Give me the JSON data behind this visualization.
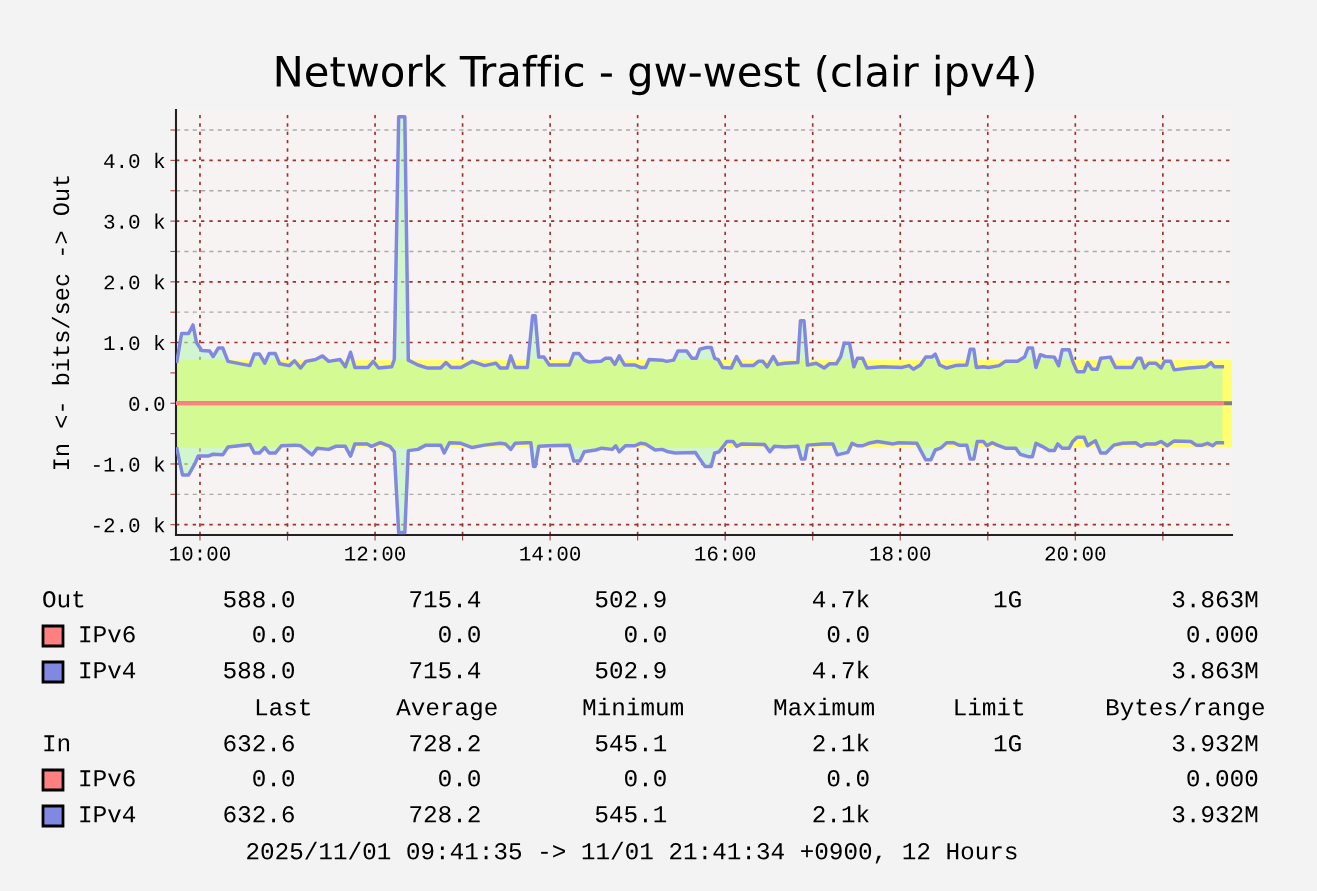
{
  "chart_data": {
    "type": "area",
    "title": "Network Traffic - gw-west (clair ipv4)",
    "ylabel": "In <- bits/sec -> Out",
    "xlim": [
      9.726,
      21.79
    ],
    "ylim": [
      -2170,
      4830
    ],
    "xticks": [
      {
        "value": 10,
        "label": "10:00"
      },
      {
        "value": 11,
        "label": null
      },
      {
        "value": 12,
        "label": "12:00"
      },
      {
        "value": 13,
        "label": null
      },
      {
        "value": 14,
        "label": "14:00"
      },
      {
        "value": 15,
        "label": null
      },
      {
        "value": 16,
        "label": "16:00"
      },
      {
        "value": 17,
        "label": null
      },
      {
        "value": 18,
        "label": "18:00"
      },
      {
        "value": 19,
        "label": null
      },
      {
        "value": 20,
        "label": "20:00"
      },
      {
        "value": 21,
        "label": null
      }
    ],
    "yticks": [
      {
        "value": -2000,
        "label": "-2.0 k"
      },
      {
        "value": -1500,
        "label": null
      },
      {
        "value": -1000,
        "label": "-1.0 k"
      },
      {
        "value": -500,
        "label": null
      },
      {
        "value": 0,
        "label": "0.0"
      },
      {
        "value": 500,
        "label": null
      },
      {
        "value": 1000,
        "label": "1.0 k"
      },
      {
        "value": 1500,
        "label": null
      },
      {
        "value": 2000,
        "label": "2.0 k"
      },
      {
        "value": 2500,
        "label": null
      },
      {
        "value": 3000,
        "label": "3.0 k"
      },
      {
        "value": 3500,
        "label": null
      },
      {
        "value": 4000,
        "label": "4.0 k"
      },
      {
        "value": 4500,
        "label": null
      }
    ],
    "grid": true,
    "legend": "bottom",
    "bands": [
      {
        "axis": "y",
        "from": 0,
        "to": 715.4,
        "color": "#ffff70"
      },
      {
        "axis": "y",
        "from": -728.2,
        "to": 0,
        "color": "#ffff70"
      }
    ],
    "ref_lines": [
      {
        "axis": "y",
        "value": 0,
        "color": "#808080"
      }
    ],
    "series": [
      {
        "name": "IPv6",
        "type": "line",
        "color": "#ff8080",
        "x": [
          9.736,
          21.68
        ],
        "values": [
          0,
          0
        ]
      },
      {
        "color": "#b0f5b0",
        "x": [
          9.736,
          9.79,
          9.87,
          9.92,
          9.96,
          10.02,
          10.11,
          10.15,
          10.21,
          10.26,
          10.32,
          10.57,
          10.62,
          10.68,
          10.74,
          10.79,
          10.86,
          10.91,
          11.02,
          11.08,
          11.15,
          11.21,
          11.32,
          11.4,
          11.47,
          11.6,
          11.66,
          11.72,
          11.77,
          11.92,
          11.98,
          12.04,
          12.19,
          12.22,
          12.27,
          12.34,
          12.38,
          12.49,
          12.6,
          12.75,
          12.81,
          12.87,
          12.98,
          13.11,
          13.25,
          13.38,
          13.43,
          13.51,
          13.55,
          13.6,
          13.74,
          13.8,
          13.83,
          13.87,
          13.93,
          13.99,
          14.22,
          14.27,
          14.33,
          14.39,
          14.44,
          14.58,
          14.63,
          14.69,
          14.74,
          14.79,
          14.85,
          14.97,
          15.03,
          15.09,
          15.13,
          15.28,
          15.33,
          15.41,
          15.46,
          15.56,
          15.62,
          15.67,
          15.71,
          15.79,
          15.84,
          15.88,
          15.92,
          15.97,
          16.07,
          16.13,
          16.19,
          16.32,
          16.38,
          16.43,
          16.48,
          16.55,
          16.6,
          16.68,
          16.83,
          16.86,
          16.9,
          16.94,
          17.04,
          17.13,
          17.19,
          17.27,
          17.32,
          17.36,
          17.42,
          17.47,
          17.51,
          17.57,
          17.62,
          17.79,
          18.02,
          18.1,
          18.15,
          18.23,
          18.29,
          18.36,
          18.4,
          18.45,
          18.53,
          18.63,
          18.76,
          18.8,
          18.84,
          18.87,
          18.95,
          19.01,
          19.13,
          19.2,
          19.34,
          19.42,
          19.46,
          19.51,
          19.55,
          19.6,
          19.66,
          19.76,
          19.81,
          19.85,
          19.93,
          19.97,
          20.02,
          20.1,
          20.14,
          20.19,
          20.25,
          20.29,
          20.4,
          20.46,
          20.65,
          20.71,
          20.75,
          20.79,
          20.84,
          20.92,
          20.98,
          21.02,
          21.09,
          21.13,
          21.3,
          21.49,
          21.55,
          21.59,
          21.68
        ],
        "values": [
          690,
          1150,
          1150,
          1290,
          1000,
          870,
          860,
          770,
          910,
          910,
          690,
          620,
          810,
          810,
          660,
          820,
          820,
          650,
          620,
          700,
          580,
          690,
          720,
          780,
          690,
          720,
          600,
          840,
          590,
          590,
          690,
          580,
          600,
          720,
          4720,
          4720,
          710,
          630,
          580,
          580,
          670,
          590,
          590,
          690,
          620,
          660,
          580,
          580,
          780,
          590,
          590,
          1440,
          1440,
          760,
          760,
          630,
          630,
          820,
          820,
          710,
          680,
          690,
          740,
          740,
          640,
          780,
          630,
          630,
          590,
          590,
          720,
          710,
          690,
          710,
          860,
          860,
          740,
          740,
          890,
          920,
          920,
          740,
          720,
          590,
          580,
          770,
          620,
          620,
          690,
          690,
          600,
          770,
          640,
          660,
          670,
          1360,
          1360,
          630,
          660,
          580,
          650,
          650,
          770,
          990,
          990,
          600,
          740,
          740,
          580,
          600,
          590,
          620,
          560,
          630,
          760,
          760,
          810,
          630,
          580,
          620,
          630,
          890,
          890,
          590,
          600,
          590,
          620,
          690,
          690,
          760,
          910,
          910,
          590,
          800,
          770,
          760,
          620,
          880,
          880,
          690,
          520,
          520,
          670,
          560,
          560,
          740,
          760,
          590,
          590,
          740,
          740,
          580,
          660,
          660,
          580,
          690,
          690,
          550,
          580,
          600,
          670,
          600,
          600
        ]
      },
      {
        "name": "IPv4",
        "type": "line",
        "color": "#8088e0",
        "x": [
          9.736,
          9.79,
          9.87,
          9.92,
          9.96,
          10.02,
          10.11,
          10.15,
          10.21,
          10.26,
          10.32,
          10.57,
          10.62,
          10.68,
          10.74,
          10.79,
          10.86,
          10.91,
          11.02,
          11.08,
          11.15,
          11.21,
          11.32,
          11.4,
          11.47,
          11.6,
          11.66,
          11.72,
          11.77,
          11.92,
          11.98,
          12.04,
          12.19,
          12.22,
          12.27,
          12.34,
          12.38,
          12.49,
          12.6,
          12.75,
          12.81,
          12.87,
          12.98,
          13.11,
          13.25,
          13.38,
          13.43,
          13.51,
          13.55,
          13.6,
          13.74,
          13.8,
          13.83,
          13.87,
          13.93,
          13.99,
          14.22,
          14.27,
          14.33,
          14.39,
          14.44,
          14.58,
          14.63,
          14.69,
          14.74,
          14.79,
          14.85,
          14.97,
          15.03,
          15.09,
          15.13,
          15.28,
          15.33,
          15.41,
          15.46,
          15.56,
          15.62,
          15.67,
          15.71,
          15.79,
          15.84,
          15.88,
          15.92,
          15.97,
          16.07,
          16.13,
          16.19,
          16.32,
          16.38,
          16.43,
          16.48,
          16.55,
          16.6,
          16.68,
          16.83,
          16.86,
          16.9,
          16.94,
          17.04,
          17.13,
          17.19,
          17.27,
          17.32,
          17.36,
          17.42,
          17.47,
          17.51,
          17.57,
          17.62,
          17.79,
          18.02,
          18.1,
          18.15,
          18.23,
          18.29,
          18.36,
          18.4,
          18.45,
          18.53,
          18.63,
          18.76,
          18.8,
          18.84,
          18.87,
          18.95,
          19.01,
          19.13,
          19.2,
          19.34,
          19.42,
          19.46,
          19.51,
          19.55,
          19.6,
          19.66,
          19.76,
          19.81,
          19.85,
          19.93,
          19.97,
          20.02,
          20.1,
          20.14,
          20.19,
          20.25,
          20.29,
          20.4,
          20.46,
          20.65,
          20.71,
          20.75,
          20.79,
          20.84,
          20.92,
          20.98,
          21.02,
          21.09,
          21.13,
          21.3,
          21.49,
          21.55,
          21.59,
          21.68
        ],
        "values": [
          690,
          1150,
          1150,
          1290,
          1000,
          870,
          860,
          770,
          910,
          910,
          690,
          620,
          810,
          810,
          660,
          820,
          820,
          650,
          620,
          700,
          580,
          690,
          720,
          780,
          690,
          720,
          600,
          840,
          590,
          590,
          690,
          580,
          600,
          720,
          4720,
          4720,
          710,
          630,
          580,
          580,
          670,
          590,
          590,
          690,
          620,
          660,
          580,
          580,
          780,
          590,
          590,
          1440,
          1440,
          760,
          760,
          630,
          630,
          820,
          820,
          710,
          680,
          690,
          740,
          740,
          640,
          780,
          630,
          630,
          590,
          590,
          720,
          710,
          690,
          710,
          860,
          860,
          740,
          740,
          890,
          920,
          920,
          740,
          720,
          590,
          580,
          770,
          620,
          620,
          690,
          690,
          600,
          770,
          640,
          660,
          670,
          1360,
          1360,
          630,
          660,
          580,
          650,
          650,
          770,
          990,
          990,
          600,
          740,
          740,
          580,
          600,
          590,
          620,
          560,
          630,
          760,
          760,
          810,
          630,
          580,
          620,
          630,
          890,
          890,
          590,
          600,
          590,
          620,
          690,
          690,
          760,
          910,
          910,
          590,
          800,
          770,
          760,
          620,
          880,
          880,
          690,
          520,
          520,
          670,
          560,
          560,
          740,
          760,
          590,
          590,
          740,
          740,
          580,
          660,
          660,
          580,
          690,
          690,
          550,
          580,
          600,
          670,
          600,
          600
        ]
      },
      {
        "name": "IPv6",
        "type": "line",
        "color": "#ff8080",
        "x": [
          9.736,
          21.68
        ],
        "values": [
          0,
          0
        ]
      },
      {
        "color": "#b0f5b0",
        "x": [
          9.736,
          9.8,
          9.87,
          9.94,
          9.98,
          10.09,
          10.15,
          10.26,
          10.32,
          10.57,
          10.62,
          10.68,
          10.74,
          10.79,
          10.86,
          10.93,
          11.09,
          11.15,
          11.21,
          11.28,
          11.34,
          11.47,
          11.55,
          11.66,
          11.72,
          11.77,
          11.91,
          11.96,
          12.06,
          12.17,
          12.22,
          12.27,
          12.34,
          12.38,
          12.49,
          12.58,
          12.75,
          12.79,
          12.85,
          12.98,
          13.11,
          13.25,
          13.43,
          13.49,
          13.55,
          13.6,
          13.74,
          13.78,
          13.81,
          13.83,
          13.87,
          13.99,
          14.22,
          14.27,
          14.34,
          14.39,
          14.52,
          14.59,
          14.71,
          14.75,
          14.79,
          14.86,
          14.97,
          15.03,
          15.09,
          15.2,
          15.28,
          15.35,
          15.43,
          15.66,
          15.71,
          15.77,
          15.84,
          15.88,
          15.93,
          16.02,
          16.09,
          16.13,
          16.19,
          16.45,
          16.51,
          16.56,
          16.68,
          16.83,
          16.87,
          16.91,
          16.94,
          17.12,
          17.23,
          17.28,
          17.4,
          17.45,
          17.51,
          17.57,
          17.64,
          17.74,
          17.92,
          17.98,
          18.19,
          18.29,
          18.35,
          18.4,
          18.46,
          18.53,
          18.61,
          18.67,
          18.76,
          18.8,
          18.84,
          18.88,
          18.95,
          18.99,
          19.05,
          19.11,
          19.2,
          19.32,
          19.37,
          19.46,
          19.51,
          19.55,
          19.62,
          19.7,
          19.76,
          19.8,
          19.85,
          19.93,
          19.97,
          20.02,
          20.1,
          20.14,
          20.19,
          20.23,
          20.29,
          20.35,
          20.44,
          20.54,
          20.69,
          20.75,
          20.81,
          20.92,
          20.98,
          21.05,
          21.13,
          21.32,
          21.38,
          21.45,
          21.51,
          21.57,
          21.61,
          21.68
        ],
        "values": [
          -750,
          -1180,
          -1180,
          -1000,
          -870,
          -870,
          -840,
          -850,
          -720,
          -680,
          -820,
          -820,
          -730,
          -820,
          -820,
          -700,
          -690,
          -700,
          -770,
          -850,
          -740,
          -760,
          -710,
          -710,
          -870,
          -670,
          -670,
          -710,
          -650,
          -710,
          -800,
          -2130,
          -2130,
          -780,
          -760,
          -690,
          -690,
          -820,
          -650,
          -660,
          -730,
          -690,
          -660,
          -670,
          -760,
          -660,
          -650,
          -650,
          -1040,
          -1040,
          -710,
          -700,
          -690,
          -950,
          -950,
          -800,
          -770,
          -740,
          -760,
          -700,
          -800,
          -700,
          -700,
          -660,
          -670,
          -770,
          -760,
          -800,
          -820,
          -810,
          -920,
          -1040,
          -1040,
          -820,
          -800,
          -630,
          -630,
          -710,
          -670,
          -680,
          -800,
          -710,
          -720,
          -710,
          -920,
          -920,
          -690,
          -670,
          -670,
          -850,
          -810,
          -660,
          -700,
          -700,
          -660,
          -630,
          -670,
          -650,
          -660,
          -930,
          -930,
          -770,
          -740,
          -650,
          -650,
          -690,
          -690,
          -920,
          -920,
          -630,
          -630,
          -700,
          -650,
          -690,
          -740,
          -740,
          -840,
          -880,
          -880,
          -660,
          -710,
          -780,
          -780,
          -670,
          -740,
          -740,
          -630,
          -560,
          -560,
          -700,
          -650,
          -620,
          -820,
          -820,
          -690,
          -660,
          -650,
          -710,
          -670,
          -670,
          -630,
          -700,
          -620,
          -630,
          -690,
          -690,
          -660,
          -700,
          -650,
          -650
        ]
      },
      {
        "name": "IPv4",
        "type": "line",
        "color": "#8088e0",
        "x": [
          9.736,
          9.8,
          9.87,
          9.94,
          9.98,
          10.09,
          10.15,
          10.26,
          10.32,
          10.57,
          10.62,
          10.68,
          10.74,
          10.79,
          10.86,
          10.93,
          11.09,
          11.15,
          11.21,
          11.28,
          11.34,
          11.47,
          11.55,
          11.66,
          11.72,
          11.77,
          11.91,
          11.96,
          12.06,
          12.17,
          12.22,
          12.27,
          12.34,
          12.38,
          12.49,
          12.58,
          12.75,
          12.79,
          12.85,
          12.98,
          13.11,
          13.25,
          13.43,
          13.49,
          13.55,
          13.6,
          13.74,
          13.78,
          13.81,
          13.83,
          13.87,
          13.99,
          14.22,
          14.27,
          14.34,
          14.39,
          14.52,
          14.59,
          14.71,
          14.75,
          14.79,
          14.86,
          14.97,
          15.03,
          15.09,
          15.2,
          15.28,
          15.35,
          15.43,
          15.66,
          15.71,
          15.77,
          15.84,
          15.88,
          15.93,
          16.02,
          16.09,
          16.13,
          16.19,
          16.45,
          16.51,
          16.56,
          16.68,
          16.83,
          16.87,
          16.91,
          16.94,
          17.12,
          17.23,
          17.28,
          17.4,
          17.45,
          17.51,
          17.57,
          17.64,
          17.74,
          17.92,
          17.98,
          18.19,
          18.29,
          18.35,
          18.4,
          18.46,
          18.53,
          18.61,
          18.67,
          18.76,
          18.8,
          18.84,
          18.88,
          18.95,
          18.99,
          19.05,
          19.11,
          19.2,
          19.32,
          19.37,
          19.46,
          19.51,
          19.55,
          19.62,
          19.7,
          19.76,
          19.8,
          19.85,
          19.93,
          19.97,
          20.02,
          20.1,
          20.14,
          20.19,
          20.23,
          20.29,
          20.35,
          20.44,
          20.54,
          20.69,
          20.75,
          20.81,
          20.92,
          20.98,
          21.05,
          21.13,
          21.32,
          21.38,
          21.45,
          21.51,
          21.57,
          21.61,
          21.68
        ],
        "values": [
          -750,
          -1180,
          -1180,
          -1000,
          -870,
          -870,
          -840,
          -850,
          -720,
          -680,
          -820,
          -820,
          -730,
          -820,
          -820,
          -700,
          -690,
          -700,
          -770,
          -850,
          -740,
          -760,
          -710,
          -710,
          -870,
          -670,
          -670,
          -710,
          -650,
          -710,
          -800,
          -2130,
          -2130,
          -780,
          -760,
          -690,
          -690,
          -820,
          -650,
          -660,
          -730,
          -690,
          -660,
          -670,
          -760,
          -660,
          -650,
          -650,
          -1040,
          -1040,
          -710,
          -700,
          -690,
          -950,
          -950,
          -800,
          -770,
          -740,
          -760,
          -700,
          -800,
          -700,
          -700,
          -660,
          -670,
          -770,
          -760,
          -800,
          -820,
          -810,
          -920,
          -1040,
          -1040,
          -820,
          -800,
          -630,
          -630,
          -710,
          -670,
          -680,
          -800,
          -710,
          -720,
          -710,
          -920,
          -920,
          -690,
          -670,
          -670,
          -850,
          -810,
          -660,
          -700,
          -700,
          -660,
          -630,
          -670,
          -650,
          -660,
          -930,
          -930,
          -770,
          -740,
          -650,
          -650,
          -690,
          -690,
          -920,
          -920,
          -630,
          -630,
          -700,
          -650,
          -690,
          -740,
          -740,
          -840,
          -880,
          -880,
          -660,
          -710,
          -780,
          -780,
          -670,
          -740,
          -740,
          -630,
          -560,
          -560,
          -700,
          -650,
          -620,
          -820,
          -820,
          -690,
          -660,
          -650,
          -710,
          -670,
          -670,
          -630,
          -700,
          -620,
          -630,
          -690,
          -690,
          -660,
          -700,
          -650,
          -650
        ]
      }
    ],
    "annotations": [
      "Out",
      "588.0",
      "715.4",
      "502.9",
      "4.7k",
      "1G",
      "3.863M",
      "0.0",
      "0.0",
      "0.0",
      "0.0",
      "0.000",
      "588.0",
      "715.4",
      "502.9",
      "4.7k",
      "3.863M",
      "Last",
      "Average",
      "Minimum",
      "Maximum",
      "Limit",
      "Bytes/range",
      "In",
      "632.6",
      "728.2",
      "545.1",
      "2.1k",
      "1G",
      "3.932M",
      "0.0",
      "0.0",
      "0.0",
      "0.0",
      "0.000",
      "632.6",
      "728.2",
      "545.1",
      "2.1k",
      "3.932M",
      "2025/11/01 09:41:35 -> 11/01 21:41:34 +0900, 12 Hours"
    ]
  }
}
